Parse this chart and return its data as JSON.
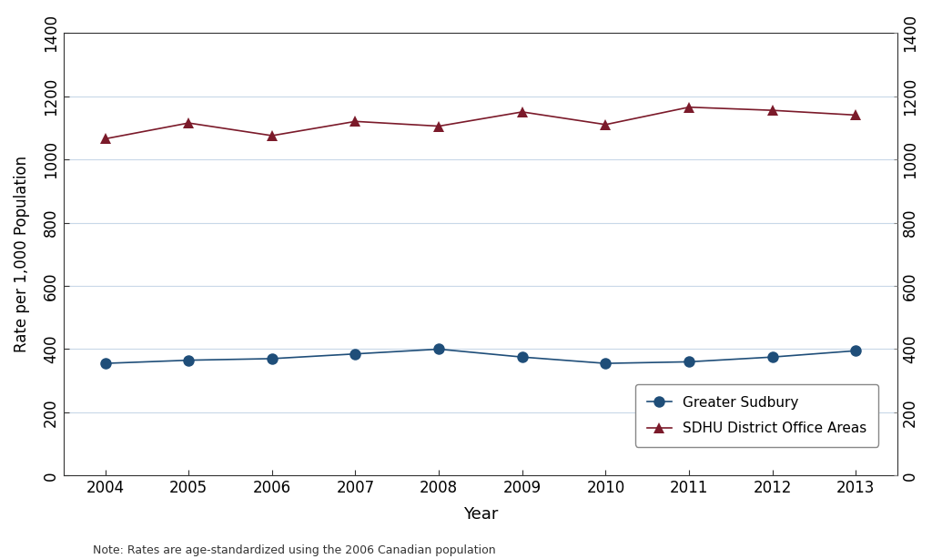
{
  "years": [
    2004,
    2005,
    2006,
    2007,
    2008,
    2009,
    2010,
    2011,
    2012,
    2013
  ],
  "greater_sudbury": [
    355,
    365,
    370,
    385,
    400,
    375,
    355,
    360,
    375,
    395
  ],
  "sdhu_district": [
    1065,
    1115,
    1075,
    1120,
    1105,
    1150,
    1110,
    1165,
    1155,
    1140
  ],
  "sudbury_color": "#1f4e79",
  "sdhu_color": "#7b1a2a",
  "ylabel": "Rate per 1,000 Population",
  "xlabel": "Year",
  "ylim": [
    0,
    1400
  ],
  "yticks": [
    0,
    200,
    400,
    600,
    800,
    1000,
    1200,
    1400
  ],
  "legend_sudbury": "Greater Sudbury",
  "legend_sdhu": "SDHU District Office Areas",
  "note": "Note: Rates are age-standardized using the 2006 Canadian population",
  "background_color": "#ffffff",
  "grid_color": "#c8d8e8"
}
